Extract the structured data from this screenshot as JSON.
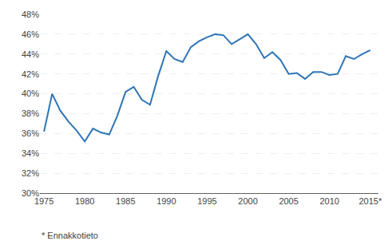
{
  "chart_data": {
    "type": "line",
    "x": [
      1975,
      1976,
      1977,
      1978,
      1979,
      1980,
      1981,
      1982,
      1983,
      1984,
      1985,
      1986,
      1987,
      1988,
      1989,
      1990,
      1991,
      1992,
      1993,
      1994,
      1995,
      1996,
      1997,
      1998,
      1999,
      2000,
      2001,
      2002,
      2003,
      2004,
      2005,
      2006,
      2007,
      2008,
      2009,
      2010,
      2011,
      2012,
      2013,
      2014,
      2015
    ],
    "values": [
      36.2,
      40.0,
      38.3,
      37.2,
      36.3,
      35.2,
      36.5,
      36.1,
      35.9,
      37.8,
      40.2,
      40.7,
      39.4,
      38.9,
      41.8,
      44.3,
      43.5,
      43.2,
      44.7,
      45.3,
      45.7,
      46.0,
      45.9,
      45.0,
      45.5,
      46.0,
      45.0,
      43.6,
      44.2,
      43.4,
      42.0,
      42.1,
      41.5,
      42.2,
      42.2,
      41.9,
      42.0,
      43.8,
      43.5,
      44.0,
      44.4
    ],
    "color": "#2e75b6",
    "xlim": [
      1974.5,
      2016
    ],
    "xticks": [
      1975,
      1980,
      1985,
      1990,
      1995,
      2000,
      2005,
      2010,
      {
        "value": 2015,
        "label": "2015*"
      }
    ],
    "ylim": [
      30,
      48
    ],
    "yticks": [
      {
        "value": 30,
        "label": "30%"
      },
      {
        "value": 32,
        "label": "32%"
      },
      {
        "value": 34,
        "label": "34%"
      },
      {
        "value": 36,
        "label": "36%"
      },
      {
        "value": 38,
        "label": "38%"
      },
      {
        "value": 40,
        "label": "40%"
      },
      {
        "value": 42,
        "label": "42%"
      },
      {
        "value": 44,
        "label": "44%"
      },
      {
        "value": 46,
        "label": "46%"
      },
      {
        "value": 48,
        "label": "48%"
      }
    ],
    "grid": true,
    "annotations": [
      "* Ennakkotieto"
    ]
  }
}
